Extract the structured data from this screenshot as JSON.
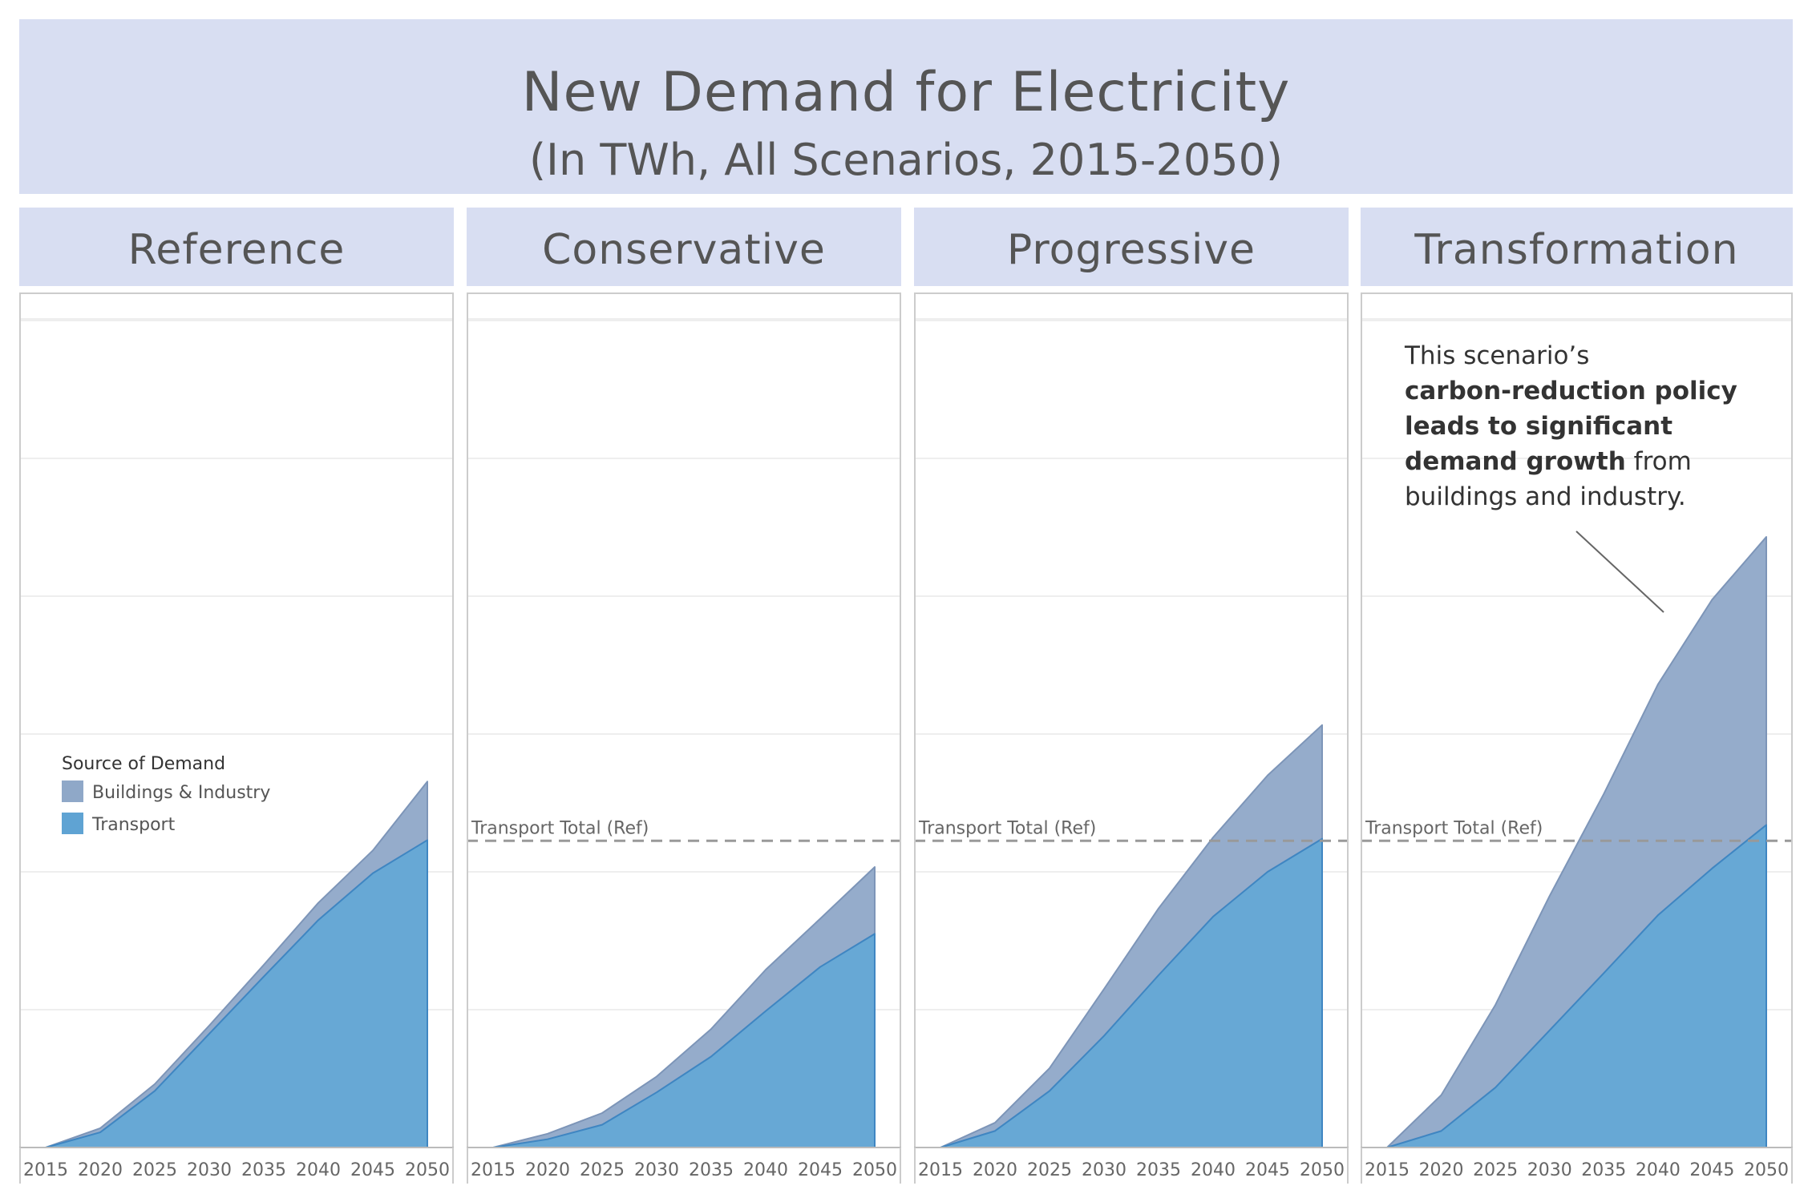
{
  "title": "New Demand for Electricity",
  "subtitle": "(In TWh, All Scenarios, 2015-2050)",
  "colors": {
    "header_bg": "#d8def2",
    "buildings_industry": "#8fa8c8",
    "transport": "#5fa3d3",
    "reference_line": "#999999"
  },
  "legend": {
    "title": "Source of Demand",
    "items": [
      {
        "label": "Buildings & Industry",
        "color": "#8fa8c8"
      },
      {
        "label": "Transport",
        "color": "#5fa3d3"
      }
    ]
  },
  "annotation": {
    "prefix": "This scenario’s",
    "bold": "carbon-reduction policy leads to significant demand growth",
    "suffix": "from buildings and industry."
  },
  "chart_data": {
    "type": "area",
    "stacked": true,
    "x": [
      2015,
      2020,
      2025,
      2030,
      2035,
      2040,
      2045,
      2050
    ],
    "x_tick_labels": [
      "2015",
      "2020",
      "2025",
      "2030",
      "2035",
      "2040",
      "2045",
      "2050"
    ],
    "ylim": [
      0,
      1250
    ],
    "y_gridlines": [
      200,
      400,
      600,
      800,
      1000,
      1200
    ],
    "y_tick_labels_shown": false,
    "legend_position": "left-middle of first panel",
    "reference_line": {
      "label": "Transport Total (Ref)",
      "value": 445,
      "style": "dashed"
    },
    "panels": [
      {
        "name": "Reference",
        "series": [
          {
            "name": "Transport",
            "values": [
              0,
              22,
              82,
              165,
              248,
              330,
              398,
              446
            ]
          },
          {
            "name": "Buildings & Industry",
            "values": [
              0,
              6,
              10,
              12,
              17,
              25,
              33,
              85
            ]
          }
        ]
      },
      {
        "name": "Conservative",
        "series": [
          {
            "name": "Transport",
            "values": [
              0,
              12,
              33,
              80,
              132,
              198,
              262,
              310
            ]
          },
          {
            "name": "Buildings & Industry",
            "values": [
              0,
              8,
              17,
              23,
              40,
              60,
              70,
              97
            ]
          }
        ]
      },
      {
        "name": "Progressive",
        "series": [
          {
            "name": "Transport",
            "values": [
              0,
              24,
              82,
              162,
              250,
              335,
              400,
              448
            ]
          },
          {
            "name": "Buildings & Industry",
            "values": [
              0,
              12,
              33,
              68,
              97,
              115,
              140,
              165
            ]
          }
        ]
      },
      {
        "name": "Transformation",
        "series": [
          {
            "name": "Transport",
            "values": [
              0,
              24,
              87,
              170,
              253,
              337,
              405,
              468
            ]
          },
          {
            "name": "Buildings & Industry",
            "values": [
              0,
              52,
              120,
              195,
              260,
              335,
              390,
              418
            ]
          }
        ]
      }
    ]
  }
}
